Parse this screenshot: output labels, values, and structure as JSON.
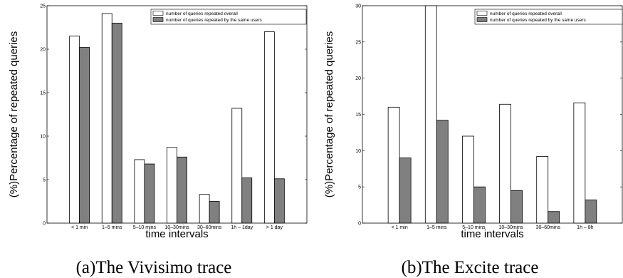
{
  "chart_data": [
    {
      "type": "bar",
      "caption": "(a)The Vivisimo trace",
      "xlabel": "time intervals",
      "ylabel": "(%)Percentage of repeated queries",
      "ylim": [
        0,
        25
      ],
      "yticks": [
        0,
        5,
        10,
        15,
        20,
        25
      ],
      "categories": [
        "< 1 min",
        "1–5 mins",
        "5–10 mins",
        "10–30mins",
        "30–60mins",
        "1h – 1day",
        "> 1 day"
      ],
      "series": [
        {
          "name": "number of queries repeated overall",
          "color": "#ffffff",
          "values": [
            21.5,
            24.1,
            7.3,
            8.7,
            3.3,
            13.2,
            22.0
          ]
        },
        {
          "name": "number of queries repeated by the same users",
          "color": "#808080",
          "values": [
            20.2,
            23.0,
            6.8,
            7.6,
            2.5,
            5.2,
            5.1
          ]
        }
      ],
      "legend": "top-right",
      "grid": false
    },
    {
      "type": "bar",
      "caption": "(b)The Excite trace",
      "xlabel": "time intervals",
      "ylabel": "(%)Percentage of repeated queries",
      "ylim": [
        0,
        30
      ],
      "yticks": [
        0,
        5,
        10,
        15,
        20,
        25,
        30
      ],
      "categories": [
        "< 1 min",
        "1–5 mins",
        "5–10 mins",
        "10–30mins",
        "30–60mins",
        "1h – 8h"
      ],
      "series": [
        {
          "name": "number of queries repeated overall",
          "color": "#ffffff",
          "values": [
            16.0,
            30.0,
            12.0,
            16.4,
            9.2,
            16.6
          ]
        },
        {
          "name": "number of queries repeated by the same users",
          "color": "#808080",
          "values": [
            9.0,
            14.2,
            5.0,
            4.5,
            1.6,
            3.2
          ]
        }
      ],
      "legend": "top-right",
      "grid": false
    }
  ]
}
